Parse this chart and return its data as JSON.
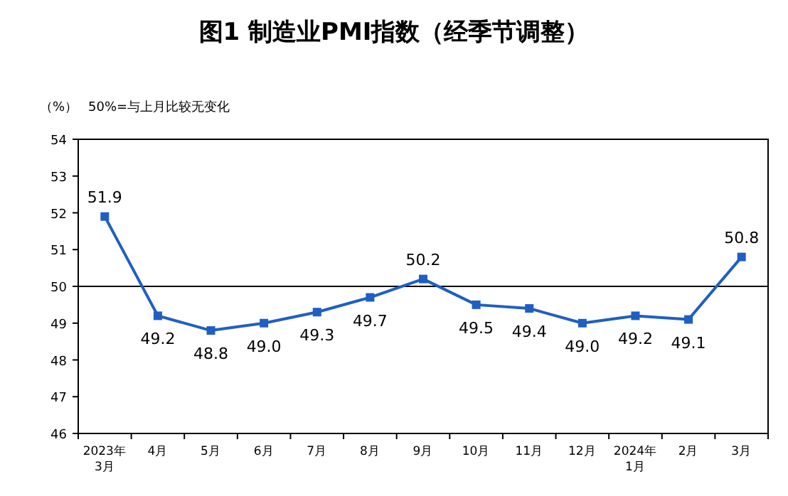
{
  "chart_data": {
    "type": "line",
    "title": "图1  制造业PMI指数（经季节调整）",
    "ylabel": "（%）",
    "annotations": [
      "50%=与上月比较无变化"
    ],
    "categories": [
      "2023年\n3月",
      "4月",
      "5月",
      "6月",
      "7月",
      "8月",
      "9月",
      "10月",
      "11月",
      "12月",
      "2024年\n1月",
      "2月",
      "3月"
    ],
    "series": [
      {
        "color": "#1f5fc4",
        "values": [
          51.9,
          49.2,
          48.8,
          49.0,
          49.3,
          49.7,
          50.2,
          49.5,
          49.4,
          49.0,
          49.2,
          49.1,
          50.8
        ],
        "value_labels": [
          "51.9",
          "49.2",
          "48.8",
          "49.0",
          "49.3",
          "49.7",
          "50.2",
          "49.5",
          "49.4",
          "49.0",
          "49.2",
          "49.1",
          "50.8"
        ]
      }
    ],
    "ylim": [
      46,
      54
    ],
    "yticks": [
      46,
      47,
      48,
      49,
      50,
      51,
      52,
      53,
      54
    ],
    "ref_lines": [
      {
        "axis": "y",
        "value": 50,
        "color": "#000000"
      }
    ],
    "marker": "square",
    "line_style": "solid",
    "grid": false
  }
}
